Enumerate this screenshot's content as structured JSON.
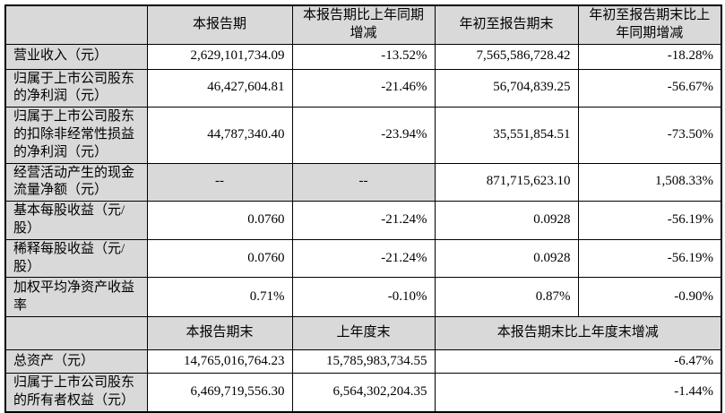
{
  "table": {
    "colors": {
      "shaded_background": "#d9d9d9",
      "border": "#000000",
      "page_background": "#ffffff"
    },
    "section1": {
      "headers": [
        "",
        "本报告期",
        "本报告期比上年同期增减",
        "年初至报告期末",
        "年初至报告期末比上年同期增减"
      ],
      "rows": [
        {
          "label": "营业收入（元）",
          "values": [
            "2,629,101,734.09",
            "-13.52%",
            "7,565,586,728.42",
            "-18.28%"
          ]
        },
        {
          "label": "归属于上市公司股东的净利润（元）",
          "values": [
            "46,427,604.81",
            "-21.46%",
            "56,704,839.25",
            "-56.67%"
          ]
        },
        {
          "label": "归属于上市公司股东的扣除非经常性损益的净利润（元）",
          "values": [
            "44,787,340.40",
            "-23.94%",
            "35,551,854.51",
            "-73.50%"
          ]
        },
        {
          "label": "经营活动产生的现金流量净额（元）",
          "values": [
            "--",
            "--",
            "871,715,623.10",
            "1,508.33%"
          ]
        },
        {
          "label": "基本每股收益（元/股）",
          "values": [
            "0.0760",
            "-21.24%",
            "0.0928",
            "-56.19%"
          ]
        },
        {
          "label": "稀释每股收益（元/股）",
          "values": [
            "0.0760",
            "-21.24%",
            "0.0928",
            "-56.19%"
          ]
        },
        {
          "label": "加权平均净资产收益率",
          "values": [
            "0.71%",
            "-0.10%",
            "0.87%",
            "-0.90%"
          ]
        }
      ]
    },
    "section2": {
      "headers": [
        "",
        "本报告期末",
        "上年度末",
        "本报告期末比上年度末增减"
      ],
      "rows": [
        {
          "label": "总资产（元）",
          "values": [
            "14,765,016,764.23",
            "15,785,983,734.55",
            "-6.47%"
          ]
        },
        {
          "label": "归属于上市公司股东的所有者权益（元）",
          "values": [
            "6,469,719,556.30",
            "6,564,302,204.35",
            "-1.44%"
          ]
        }
      ]
    }
  }
}
